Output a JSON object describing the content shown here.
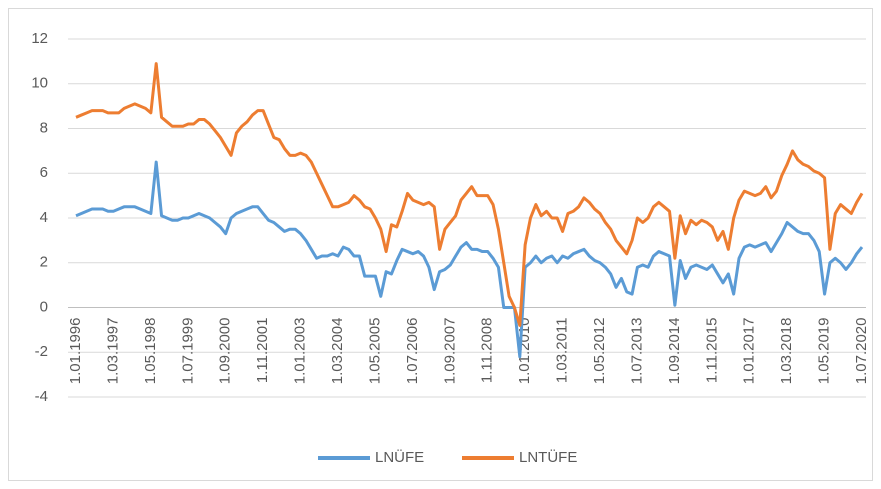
{
  "chart_data": {
    "type": "line",
    "categories": [
      "1.01.1996",
      null,
      null,
      null,
      null,
      null,
      null,
      "1.03.1997",
      null,
      null,
      null,
      null,
      null,
      null,
      "1.05.1998",
      null,
      null,
      null,
      null,
      null,
      null,
      "1.07.1999",
      null,
      null,
      null,
      null,
      null,
      null,
      "1.09.2000",
      null,
      null,
      null,
      null,
      null,
      null,
      "1.11.2001",
      null,
      null,
      null,
      null,
      null,
      null,
      "1.01.2003",
      null,
      null,
      null,
      null,
      null,
      null,
      "1.03.2004",
      null,
      null,
      null,
      null,
      null,
      null,
      "1.05.2005",
      null,
      null,
      null,
      null,
      null,
      null,
      "1.07.2006",
      null,
      null,
      null,
      null,
      null,
      null,
      "1.09.2007",
      null,
      null,
      null,
      null,
      null,
      null,
      "1.11.2008",
      null,
      null,
      null,
      null,
      null,
      null,
      "1.01.2010",
      null,
      null,
      null,
      null,
      null,
      null,
      "1.03.2011",
      null,
      null,
      null,
      null,
      null,
      null,
      "1.05.2012",
      null,
      null,
      null,
      null,
      null,
      null,
      "1.07.2013",
      null,
      null,
      null,
      null,
      null,
      null,
      "1.09.2014",
      null,
      null,
      null,
      null,
      null,
      null,
      "1.11.2015",
      null,
      null,
      null,
      null,
      null,
      null,
      "1.01.2017",
      null,
      null,
      null,
      null,
      null,
      null,
      "1.03.2018",
      null,
      null,
      null,
      null,
      null,
      null,
      "1.05.2019",
      null,
      null,
      null,
      null,
      null,
      null,
      "1.07.2020"
    ],
    "series": [
      {
        "name": "LNÜFE",
        "color": "#5b9bd5",
        "values": [
          4.1,
          4.2,
          4.3,
          4.4,
          4.4,
          4.4,
          4.3,
          4.3,
          4.4,
          4.5,
          4.5,
          4.5,
          4.4,
          4.3,
          4.2,
          6.5,
          4.1,
          4.0,
          3.9,
          3.9,
          4.0,
          4.0,
          4.1,
          4.2,
          4.1,
          4.0,
          3.8,
          3.6,
          3.3,
          4.0,
          4.2,
          4.3,
          4.4,
          4.5,
          4.5,
          4.2,
          3.9,
          3.8,
          3.6,
          3.4,
          3.5,
          3.5,
          3.3,
          3.0,
          2.6,
          2.2,
          2.3,
          2.3,
          2.4,
          2.3,
          2.7,
          2.6,
          2.3,
          2.3,
          1.4,
          1.4,
          1.4,
          0.5,
          1.6,
          1.5,
          2.1,
          2.6,
          2.5,
          2.4,
          2.5,
          2.3,
          1.8,
          0.8,
          1.6,
          1.7,
          1.9,
          2.3,
          2.7,
          2.9,
          2.6,
          2.6,
          2.5,
          2.5,
          2.2,
          1.8,
          0.0,
          0.0,
          0.0,
          -2.2,
          1.8,
          2.0,
          2.3,
          2.0,
          2.2,
          2.3,
          2.0,
          2.3,
          2.2,
          2.4,
          2.5,
          2.6,
          2.3,
          2.1,
          2.0,
          1.8,
          1.5,
          0.9,
          1.3,
          0.7,
          0.6,
          1.8,
          1.9,
          1.8,
          2.3,
          2.5,
          2.4,
          2.3,
          0.1,
          2.1,
          1.3,
          1.8,
          1.9,
          1.8,
          1.7,
          1.9,
          1.5,
          1.1,
          1.5,
          0.6,
          2.2,
          2.7,
          2.8,
          2.7,
          2.8,
          2.9,
          2.5,
          2.9,
          3.3,
          3.8,
          3.6,
          3.4,
          3.3,
          3.3,
          3.0,
          2.5,
          0.6,
          2.0,
          2.2,
          2.0,
          1.7,
          2.0,
          2.4,
          2.7
        ]
      },
      {
        "name": "LNTÜFE",
        "color": "#ed7d31",
        "values": [
          8.5,
          8.6,
          8.7,
          8.8,
          8.8,
          8.8,
          8.7,
          8.7,
          8.7,
          8.9,
          9.0,
          9.1,
          9.0,
          8.9,
          8.7,
          10.9,
          8.5,
          8.3,
          8.1,
          8.1,
          8.1,
          8.2,
          8.2,
          8.4,
          8.4,
          8.2,
          7.9,
          7.6,
          7.2,
          6.8,
          7.8,
          8.1,
          8.3,
          8.6,
          8.8,
          8.8,
          8.2,
          7.6,
          7.5,
          7.1,
          6.8,
          6.8,
          6.9,
          6.8,
          6.5,
          6.0,
          5.5,
          5.0,
          4.5,
          4.5,
          4.6,
          4.7,
          5.0,
          4.8,
          4.5,
          4.4,
          4.0,
          3.5,
          2.5,
          3.7,
          3.6,
          4.3,
          5.1,
          4.8,
          4.7,
          4.6,
          4.7,
          4.5,
          2.6,
          3.5,
          3.8,
          4.1,
          4.8,
          5.1,
          5.4,
          5.0,
          5.0,
          5.0,
          4.6,
          3.5,
          2.0,
          0.5,
          0.0,
          -0.8,
          2.8,
          4.0,
          4.6,
          4.1,
          4.3,
          4.0,
          4.0,
          3.4,
          4.2,
          4.3,
          4.5,
          4.9,
          4.7,
          4.4,
          4.2,
          3.8,
          3.5,
          3.0,
          2.7,
          2.4,
          3.0,
          4.0,
          3.8,
          4.0,
          4.5,
          4.7,
          4.5,
          4.3,
          2.2,
          4.1,
          3.3,
          3.9,
          3.7,
          3.9,
          3.8,
          3.6,
          3.0,
          3.4,
          2.6,
          4.0,
          4.8,
          5.2,
          5.1,
          5.0,
          5.1,
          5.4,
          4.9,
          5.2,
          5.9,
          6.4,
          7.0,
          6.6,
          6.4,
          6.3,
          6.1,
          6.0,
          5.8,
          2.6,
          4.2,
          4.6,
          4.4,
          4.2,
          4.7,
          5.1
        ]
      }
    ],
    "ylim": [
      -4,
      12
    ],
    "yticks": [
      -4,
      -2,
      0,
      2,
      4,
      6,
      8,
      10,
      12
    ],
    "grid": true,
    "legend": "bottom"
  }
}
